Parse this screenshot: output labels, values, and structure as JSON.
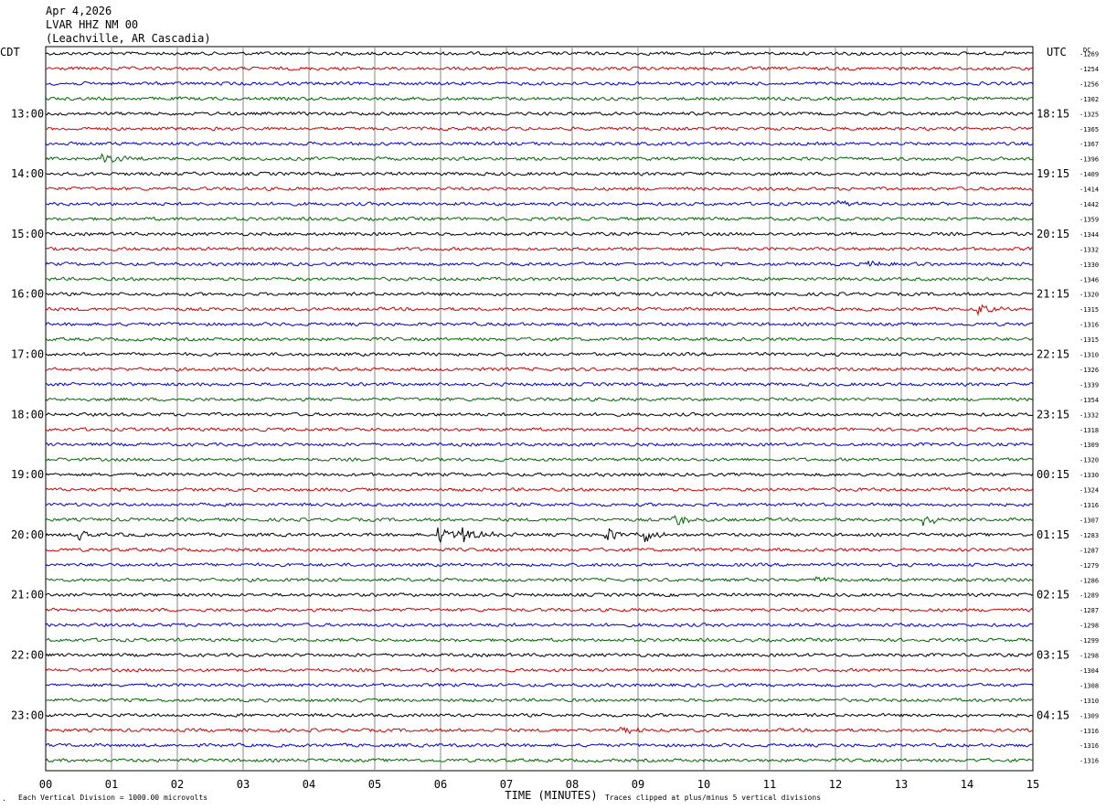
{
  "header": {
    "date": "Apr 4,2026",
    "station": "LVAR HHZ NM 00",
    "location": "(Leachville, AR Cascadia)"
  },
  "chart_data": {
    "type": "line",
    "title": "",
    "xlabel": "TIME (MINUTES)",
    "ylabel": "",
    "x_ticks": [
      "00",
      "01",
      "02",
      "03",
      "04",
      "05",
      "06",
      "07",
      "08",
      "09",
      "10",
      "11",
      "12",
      "13",
      "14",
      "15"
    ],
    "xlim": [
      0,
      15
    ],
    "left_timezone": "CDT",
    "right_timezone": "UTC",
    "dc_header": "DC",
    "left_hour_labels": [
      "13:00",
      "14:00",
      "15:00",
      "16:00",
      "17:00",
      "18:00",
      "19:00",
      "20:00",
      "21:00",
      "22:00",
      "23:00"
    ],
    "right_hour_labels": [
      "18:15",
      "19:15",
      "20:15",
      "21:15",
      "22:15",
      "23:15",
      "00:15",
      "01:15",
      "02:15",
      "03:15",
      "04:15"
    ],
    "trace_colors": [
      "#000000",
      "#cc0000",
      "#0000cc",
      "#006600"
    ],
    "dc_offsets": [
      -1269,
      -1254,
      -1256,
      -1302,
      -1325,
      -1365,
      -1367,
      -1396,
      -1409,
      -1414,
      -1442,
      -1359,
      -1344,
      -1332,
      -1330,
      -1346,
      -1320,
      -1315,
      -1316,
      -1315,
      -1310,
      -1326,
      -1339,
      -1354,
      -1332,
      -1318,
      -1309,
      -1320,
      -1330,
      -1324,
      -1316,
      -1307,
      -1283,
      -1287,
      -1279,
      -1286,
      -1289,
      -1287,
      -1298,
      -1299,
      -1298,
      -1304,
      -1308,
      -1310,
      -1309,
      -1316,
      -1316,
      -1316
    ],
    "events": [
      {
        "trace": 7,
        "minute": 0.85,
        "amp": 9
      },
      {
        "trace": 10,
        "minute": 12.0,
        "amp": 4
      },
      {
        "trace": 14,
        "minute": 12.5,
        "amp": 5
      },
      {
        "trace": 17,
        "minute": 14.15,
        "amp": 7
      },
      {
        "trace": 31,
        "minute": 9.5,
        "amp": 10
      },
      {
        "trace": 31,
        "minute": 13.3,
        "amp": 10
      },
      {
        "trace": 32,
        "minute": 0.5,
        "amp": 11
      },
      {
        "trace": 32,
        "minute": 5.95,
        "amp": 17
      },
      {
        "trace": 32,
        "minute": 6.3,
        "amp": 17
      },
      {
        "trace": 32,
        "minute": 8.5,
        "amp": 9
      },
      {
        "trace": 32,
        "minute": 9.1,
        "amp": 9
      },
      {
        "trace": 35,
        "minute": 11.7,
        "amp": 5
      },
      {
        "trace": 45,
        "minute": 8.7,
        "amp": 5
      }
    ],
    "scale_note": "Each Vertical Division = 1000.00 microvolts",
    "clip_note": "Traces clipped at plus/minus 5 vertical divisions"
  }
}
